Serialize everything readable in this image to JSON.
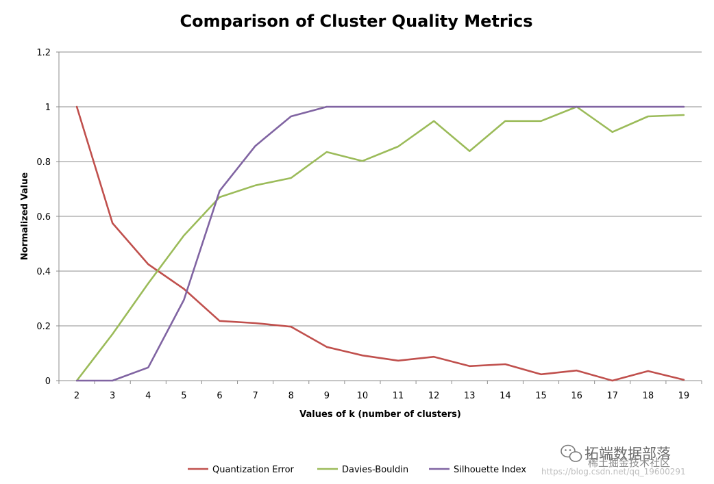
{
  "chart_data": {
    "type": "line",
    "title": "Comparison of Cluster Quality Metrics",
    "xlabel": "Values of k (number of clusters)",
    "ylabel": "Normalized Value",
    "ylim": [
      0,
      1.2
    ],
    "yticks": [
      "0",
      "0.2",
      "0.4",
      "0.6",
      "0.8",
      "1",
      "1.2"
    ],
    "ytick_values": [
      0,
      0.2,
      0.4,
      0.6,
      0.8,
      1.0,
      1.2
    ],
    "grid": true,
    "legend_position": "bottom",
    "categories": [
      "2",
      "3",
      "4",
      "5",
      "6",
      "7",
      "8",
      "9",
      "10",
      "11",
      "12",
      "13",
      "14",
      "15",
      "16",
      "17",
      "18",
      "19"
    ],
    "series": [
      {
        "name": "Quantization Error",
        "color": "#c0504d",
        "values": [
          1.0,
          0.575,
          0.425,
          0.335,
          0.218,
          0.21,
          0.197,
          0.123,
          0.092,
          0.073,
          0.087,
          0.053,
          0.06,
          0.023,
          0.037,
          0.0,
          0.035,
          0.003
        ]
      },
      {
        "name": "Davies-Bouldin",
        "color": "#9bbb59",
        "values": [
          0.0,
          0.17,
          0.355,
          0.53,
          0.67,
          0.713,
          0.74,
          0.835,
          0.802,
          0.855,
          0.948,
          0.838,
          0.948,
          0.948,
          1.0,
          0.908,
          0.965,
          0.97
        ]
      },
      {
        "name": "Silhouette Index",
        "color": "#8064a2",
        "values": [
          0.0,
          0.0,
          0.048,
          0.295,
          0.693,
          0.857,
          0.965,
          1.0,
          1.0,
          1.0,
          1.0,
          1.0,
          1.0,
          1.0,
          1.0,
          1.0,
          1.0,
          1.0
        ]
      }
    ]
  },
  "watermark": {
    "main": "拓端数据部落",
    "sub": "https://blog.csdn.net/qq_19600291",
    "overlay": "稀土掘金技术社区",
    "icon": "wechat-icon"
  }
}
